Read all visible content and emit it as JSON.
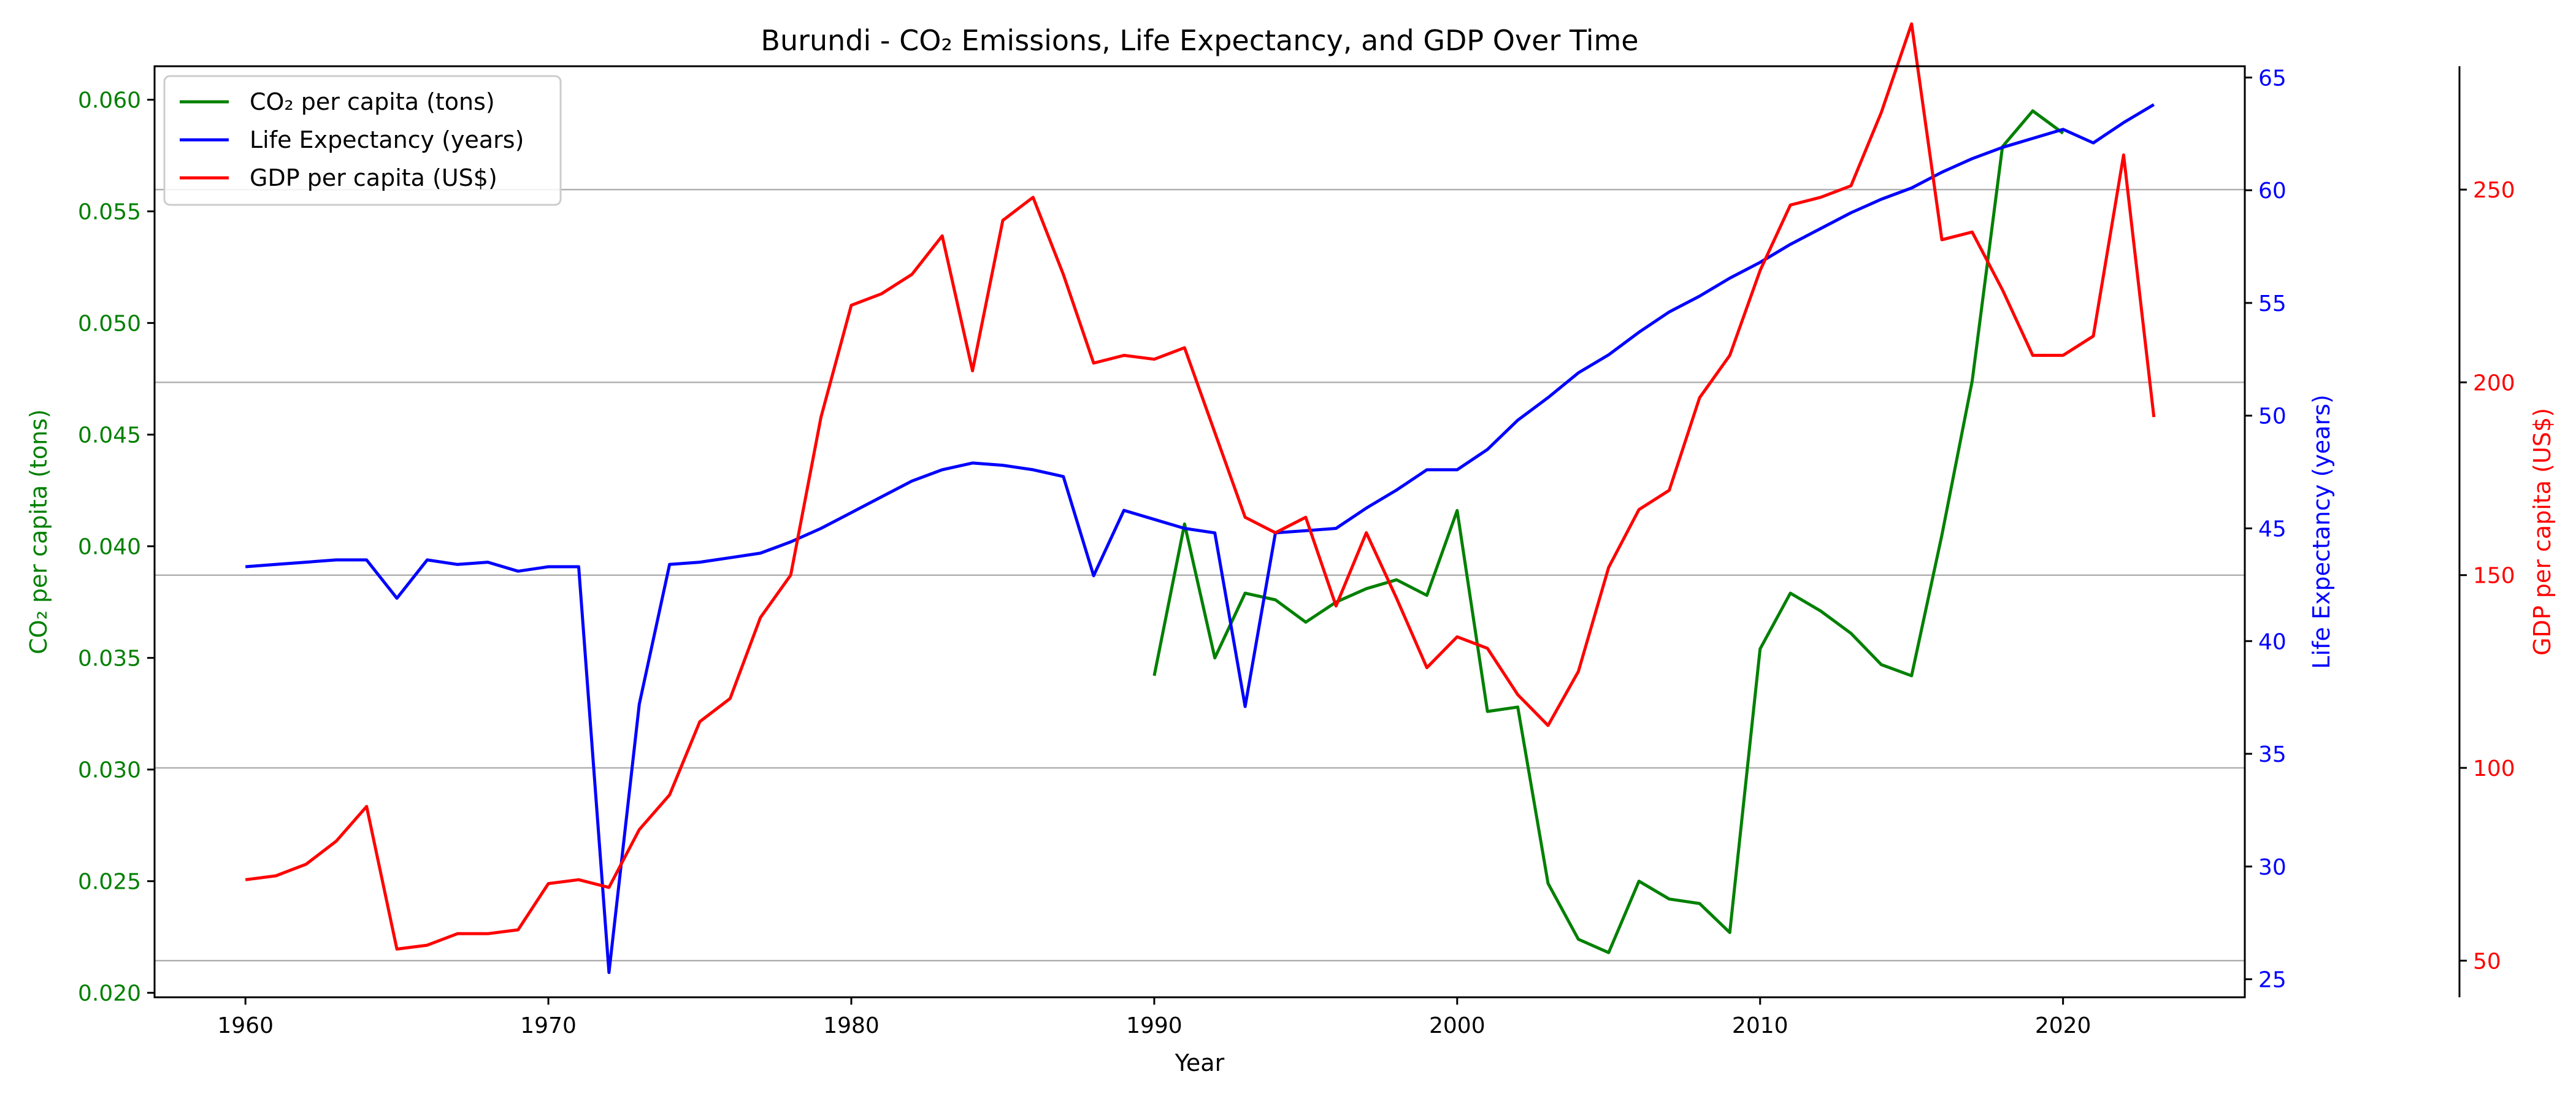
{
  "chart_data": {
    "type": "line",
    "title": "Burundi - CO₂ Emissions, Life Expectancy, and GDP Over Time",
    "xlabel": "Year",
    "grid": "horizontal",
    "legend_position": "top-left",
    "colors": {
      "co2": "#008000",
      "life": "#0000ff",
      "gdp": "#ff0000",
      "grid": "#b0b0b0"
    },
    "x_axis": {
      "range": [
        1957,
        2026
      ],
      "ticks": [
        1960,
        1970,
        1980,
        1990,
        2000,
        2010,
        2020
      ]
    },
    "axes": {
      "co2": {
        "label": "CO₂ per capita (tons)",
        "range": [
          0.0198,
          0.0615
        ],
        "ticks": [
          "0.020",
          "0.025",
          "0.030",
          "0.035",
          "0.040",
          "0.045",
          "0.050",
          "0.055",
          "0.060"
        ]
      },
      "life": {
        "label": "Life Expectancy (years)",
        "range": [
          24.2,
          65.5
        ],
        "ticks": [
          "25",
          "30",
          "35",
          "40",
          "45",
          "50",
          "55",
          "60",
          "65"
        ]
      },
      "gdp": {
        "label": "GDP per capita (US$)",
        "range": [
          40.5,
          282
        ],
        "ticks": [
          "50",
          "100",
          "150",
          "200",
          "250"
        ]
      }
    },
    "series": [
      {
        "key": "co2",
        "name": "CO₂ per capita (tons)",
        "x": [
          1990,
          1991,
          1992,
          1993,
          1994,
          1995,
          1996,
          1997,
          1998,
          1999,
          2000,
          2001,
          2002,
          2003,
          2004,
          2005,
          2006,
          2007,
          2008,
          2009,
          2010,
          2011,
          2012,
          2013,
          2014,
          2015,
          2016,
          2017,
          2018,
          2019,
          2020
        ],
        "values": [
          0.0342,
          0.041,
          0.035,
          0.0379,
          0.0376,
          0.0366,
          0.0375,
          0.0381,
          0.0385,
          0.0378,
          0.0416,
          0.0326,
          0.0328,
          0.0249,
          0.0224,
          0.0218,
          0.025,
          0.0242,
          0.024,
          0.0227,
          0.0354,
          0.0379,
          0.0371,
          0.0361,
          0.0347,
          0.0342,
          0.0405,
          0.0474,
          0.0579,
          0.0595,
          0.0585
        ]
      },
      {
        "key": "life",
        "name": "Life Expectancy (years)",
        "x": [
          1960,
          1961,
          1962,
          1963,
          1964,
          1965,
          1966,
          1967,
          1968,
          1969,
          1970,
          1971,
          1972,
          1973,
          1974,
          1975,
          1976,
          1977,
          1978,
          1979,
          1980,
          1981,
          1982,
          1983,
          1984,
          1985,
          1986,
          1987,
          1988,
          1989,
          1990,
          1991,
          1992,
          1993,
          1994,
          1995,
          1996,
          1997,
          1998,
          1999,
          2000,
          2001,
          2002,
          2003,
          2004,
          2005,
          2006,
          2007,
          2008,
          2009,
          2010,
          2011,
          2012,
          2013,
          2014,
          2015,
          2016,
          2017,
          2018,
          2019,
          2020,
          2021,
          2022,
          2023
        ],
        "values": [
          43.3,
          43.4,
          43.5,
          43.6,
          43.6,
          41.9,
          43.6,
          43.4,
          43.5,
          43.1,
          43.3,
          43.3,
          25.3,
          37.2,
          43.4,
          43.5,
          43.7,
          43.9,
          44.4,
          45.0,
          45.7,
          46.4,
          47.1,
          47.6,
          47.9,
          47.8,
          47.6,
          47.3,
          42.9,
          45.8,
          45.4,
          45.0,
          44.8,
          37.1,
          44.8,
          44.9,
          45.0,
          45.9,
          46.7,
          47.6,
          47.6,
          48.5,
          49.8,
          50.8,
          51.9,
          52.7,
          53.7,
          54.6,
          55.3,
          56.1,
          56.8,
          57.6,
          58.3,
          59.0,
          59.6,
          60.1,
          60.8,
          61.4,
          61.9,
          62.3,
          62.7,
          62.1,
          63.0,
          63.8
        ]
      },
      {
        "key": "gdp",
        "name": "GDP per capita (US$)",
        "x": [
          1960,
          1961,
          1962,
          1963,
          1964,
          1965,
          1966,
          1967,
          1968,
          1969,
          1970,
          1971,
          1972,
          1973,
          1974,
          1975,
          1976,
          1977,
          1978,
          1979,
          1980,
          1981,
          1982,
          1983,
          1984,
          1985,
          1986,
          1987,
          1988,
          1989,
          1990,
          1991,
          1992,
          1993,
          1994,
          1995,
          1996,
          1997,
          1998,
          1999,
          2000,
          2001,
          2002,
          2003,
          2004,
          2005,
          2006,
          2007,
          2008,
          2009,
          2010,
          2011,
          2012,
          2013,
          2014,
          2015,
          2016,
          2017,
          2018,
          2019,
          2020,
          2021,
          2022,
          2023
        ],
        "values": [
          71,
          72,
          75,
          81,
          90,
          53,
          54,
          57,
          57,
          58,
          70,
          71,
          69,
          84,
          93,
          112,
          118,
          139,
          150,
          191,
          220,
          223,
          228,
          238,
          203,
          242,
          248,
          228,
          205,
          207,
          206,
          209,
          187,
          165,
          161,
          165,
          142,
          161,
          144,
          126,
          134,
          131,
          119,
          111,
          125,
          152,
          167,
          172,
          196,
          207,
          229,
          246,
          248,
          251,
          270,
          293,
          237,
          239,
          224,
          207,
          207,
          212,
          259,
          191
        ]
      }
    ]
  }
}
